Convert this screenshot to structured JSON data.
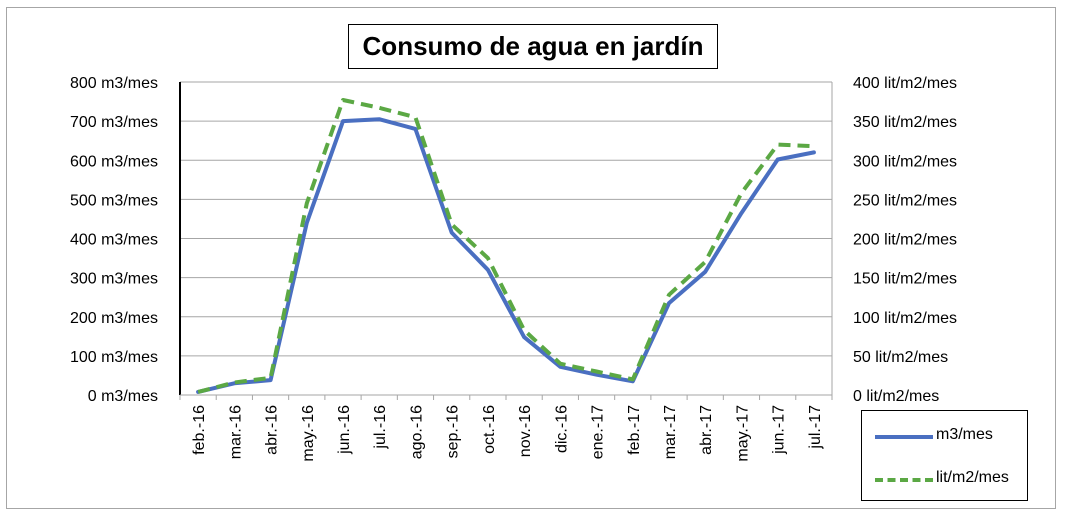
{
  "chart_data": {
    "type": "line",
    "title": "Consumo de agua en jardín",
    "categories": [
      "feb.-16",
      "mar.-16",
      "abr.-16",
      "may.-16",
      "jun.-16",
      "jul.-16",
      "ago.-16",
      "sep.-16",
      "oct.-16",
      "nov.-16",
      "dic.-16",
      "ene.-17",
      "feb.-17",
      "mar.-17",
      "abr.-17",
      "may.-17",
      "jun.-17",
      "jul.-17"
    ],
    "series": [
      {
        "name": "m3/mes",
        "axis": "left",
        "color": "#4a6fc1",
        "style": "solid",
        "values": [
          8,
          30,
          38,
          440,
          700,
          705,
          680,
          415,
          320,
          148,
          72,
          52,
          35,
          235,
          315,
          465,
          602,
          620
        ]
      },
      {
        "name": "lit/m2/mes",
        "axis": "right",
        "color": "#5ba844",
        "style": "dashed",
        "values": [
          4,
          16,
          22,
          245,
          377,
          367,
          355,
          218,
          175,
          83,
          40,
          30,
          20,
          128,
          170,
          258,
          320,
          318
        ]
      }
    ],
    "y_left": {
      "ylim": [
        0,
        800
      ],
      "ticks": [
        0,
        100,
        200,
        300,
        400,
        500,
        600,
        700,
        800
      ],
      "unit": "m3/mes"
    },
    "y_right": {
      "ylim": [
        0,
        400
      ],
      "ticks": [
        0,
        50,
        100,
        150,
        200,
        250,
        300,
        350,
        400
      ],
      "unit": "lit/m2/mes"
    },
    "grid": true,
    "legend_position": "bottom-right"
  }
}
